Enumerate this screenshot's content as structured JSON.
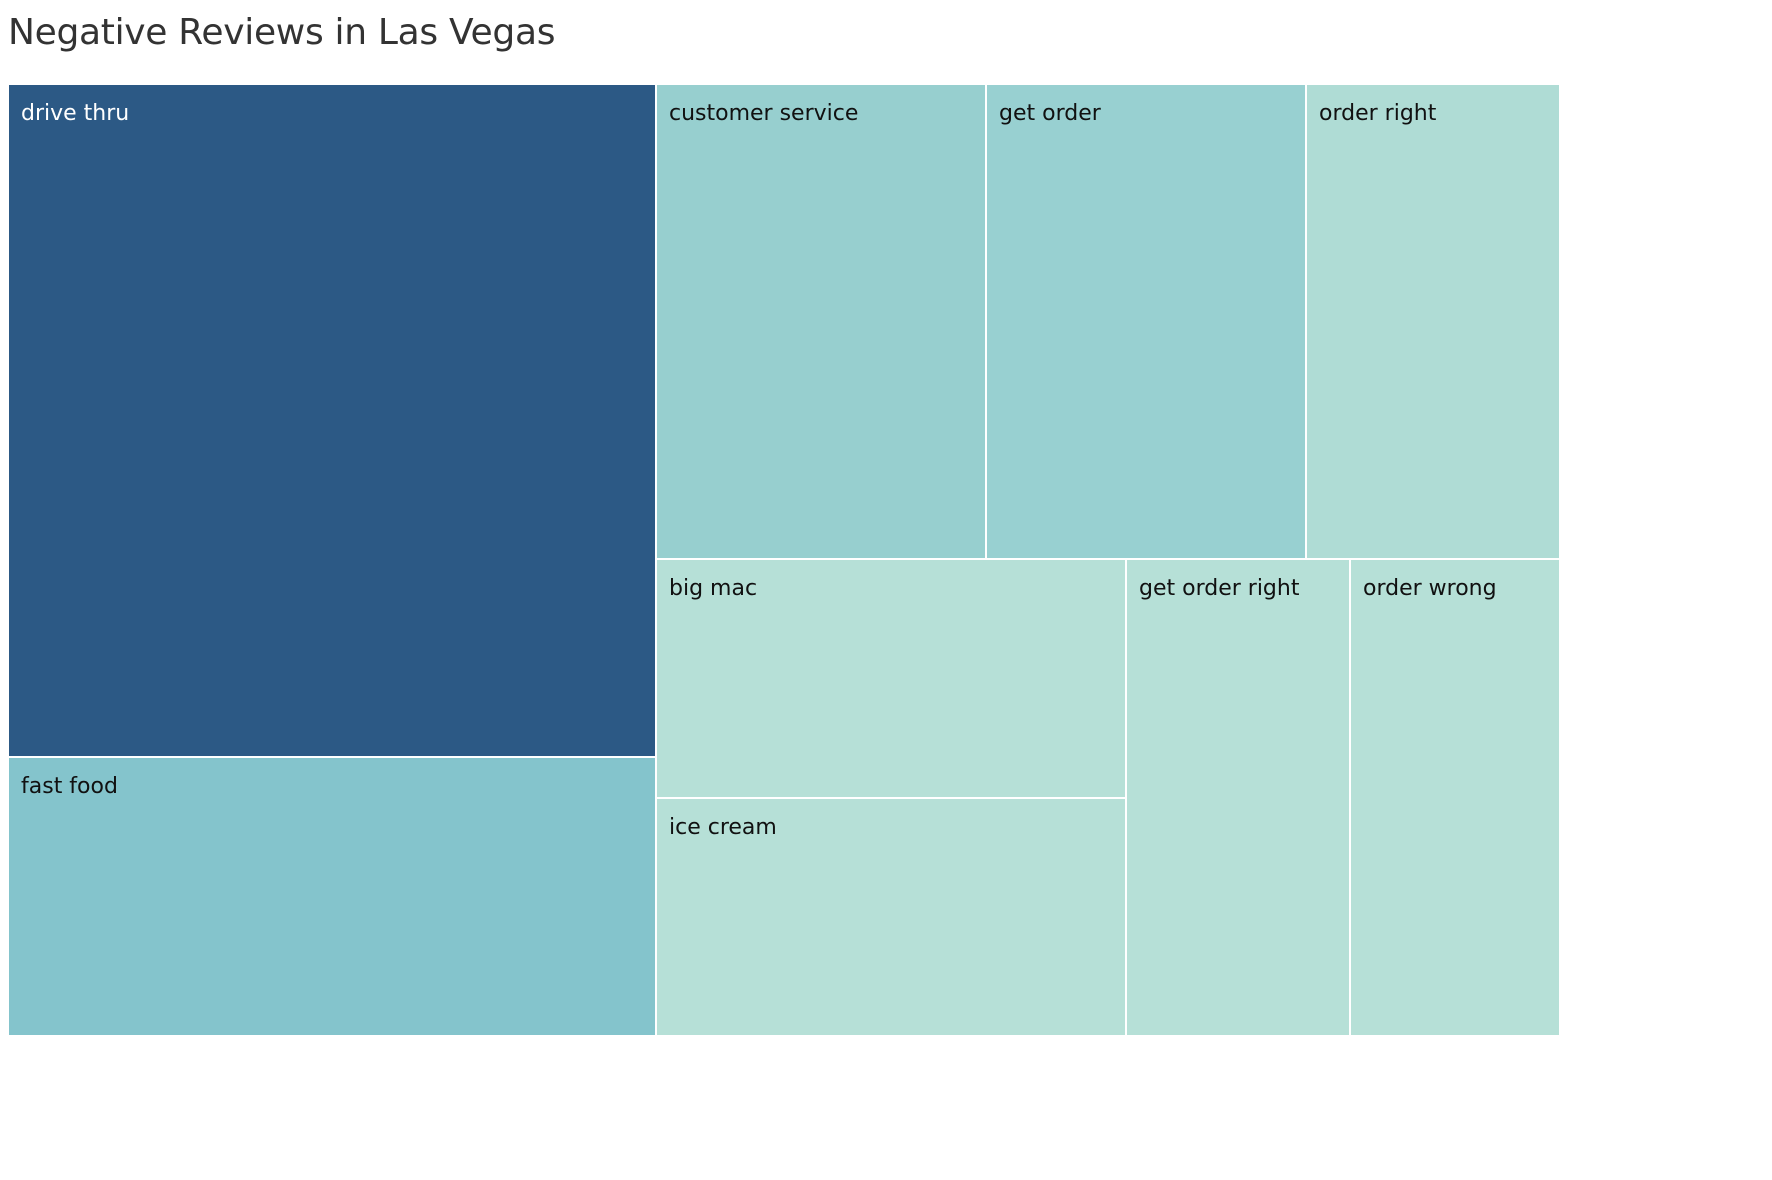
{
  "chart_data": {
    "type": "treemap",
    "title": "Negative Reviews in Las Vegas",
    "tiles": [
      {
        "label": "drive thru",
        "color": "#2c5985",
        "label_color": "#ffffff"
      },
      {
        "label": "fast food",
        "color": "#84c4cc",
        "label_color": "#111111"
      },
      {
        "label": "customer service",
        "color": "#97cfcf",
        "label_color": "#111111"
      },
      {
        "label": "get order",
        "color": "#98d0d1",
        "label_color": "#111111"
      },
      {
        "label": "order right",
        "color": "#afdcd5",
        "label_color": "#111111"
      },
      {
        "label": "big mac",
        "color": "#b6e0d7",
        "label_color": "#111111"
      },
      {
        "label": "ice cream",
        "color": "#b6e0d7",
        "label_color": "#111111"
      },
      {
        "label": "get order right",
        "color": "#b6e0d7",
        "label_color": "#111111"
      },
      {
        "label": "order wrong",
        "color": "#b6e0d7",
        "label_color": "#111111"
      }
    ]
  }
}
